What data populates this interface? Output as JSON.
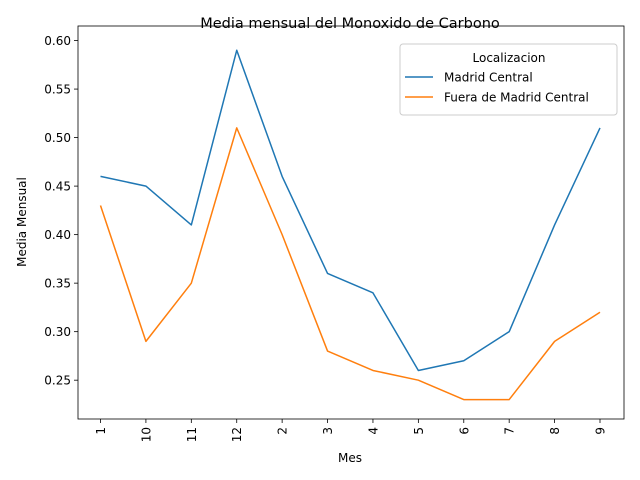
{
  "chart_data": {
    "type": "line",
    "title": "Media mensual del Monoxido de Carbono",
    "xlabel": "Mes",
    "ylabel": "Media Mensual",
    "categories": [
      "1",
      "10",
      "11",
      "12",
      "2",
      "3",
      "4",
      "5",
      "6",
      "7",
      "8",
      "9"
    ],
    "ylim": [
      0.21,
      0.615
    ],
    "yticks": [
      "0.25",
      "0.30",
      "0.35",
      "0.40",
      "0.45",
      "0.50",
      "0.55",
      "0.60"
    ],
    "legend": {
      "title": "Localizacion",
      "placement": "top-right"
    },
    "series": [
      {
        "name": "Madrid Central",
        "color": "#1f77b4",
        "values": [
          0.46,
          0.45,
          0.41,
          0.59,
          0.46,
          0.36,
          0.34,
          0.26,
          0.27,
          0.3,
          0.41,
          0.51
        ]
      },
      {
        "name": "Fuera de Madrid Central",
        "color": "#ff7f0e",
        "values": [
          0.43,
          0.29,
          0.35,
          0.51,
          0.4,
          0.28,
          0.26,
          0.25,
          0.23,
          0.23,
          0.29,
          0.32
        ]
      }
    ]
  }
}
